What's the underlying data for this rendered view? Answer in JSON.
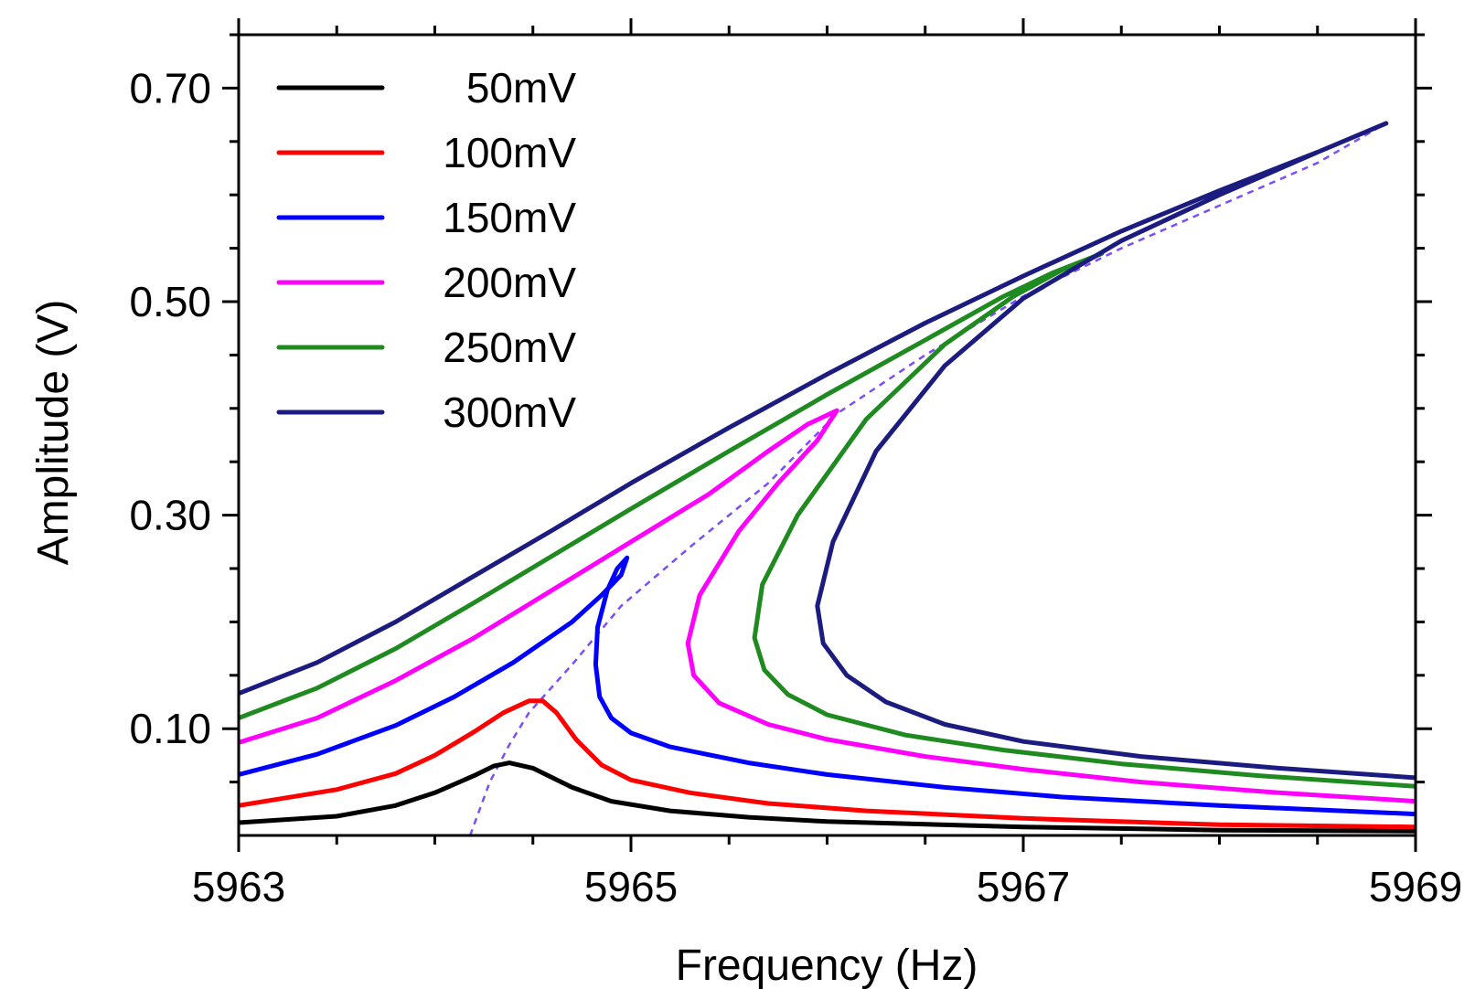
{
  "chart_data": {
    "type": "line",
    "title": "",
    "xlabel": "Frequency (Hz)",
    "ylabel": "Amplitude (V)",
    "xlim": [
      5963,
      5969
    ],
    "ylim": [
      0.0,
      0.75
    ],
    "x_ticks": [
      5963,
      5965,
      5967,
      5969
    ],
    "x_tick_labels": [
      "5963",
      "5965",
      "5967",
      "5969"
    ],
    "y_ticks": [
      0.1,
      0.3,
      0.5,
      0.7
    ],
    "y_tick_labels": [
      "0.10",
      "0.30",
      "0.50",
      "0.70"
    ],
    "grid": false,
    "legend_position": "top-left",
    "series": [
      {
        "name": "50mV",
        "color": "#000000",
        "points": [
          [
            5963.0,
            0.012
          ],
          [
            5963.5,
            0.018
          ],
          [
            5963.8,
            0.028
          ],
          [
            5964.0,
            0.04
          ],
          [
            5964.2,
            0.056
          ],
          [
            5964.3,
            0.065
          ],
          [
            5964.38,
            0.068
          ],
          [
            5964.5,
            0.063
          ],
          [
            5964.7,
            0.045
          ],
          [
            5964.9,
            0.032
          ],
          [
            5965.2,
            0.023
          ],
          [
            5965.6,
            0.017
          ],
          [
            5966.0,
            0.013
          ],
          [
            5967.0,
            0.008
          ],
          [
            5968.0,
            0.005
          ],
          [
            5969.0,
            0.004
          ]
        ]
      },
      {
        "name": "100mV",
        "color": "#ff0000",
        "points": [
          [
            5963.0,
            0.028
          ],
          [
            5963.5,
            0.043
          ],
          [
            5963.8,
            0.058
          ],
          [
            5964.0,
            0.075
          ],
          [
            5964.2,
            0.097
          ],
          [
            5964.35,
            0.115
          ],
          [
            5964.48,
            0.126
          ],
          [
            5964.55,
            0.126
          ],
          [
            5964.62,
            0.115
          ],
          [
            5964.72,
            0.09
          ],
          [
            5964.85,
            0.066
          ],
          [
            5965.0,
            0.052
          ],
          [
            5965.3,
            0.04
          ],
          [
            5965.7,
            0.03
          ],
          [
            5966.2,
            0.023
          ],
          [
            5967.0,
            0.016
          ],
          [
            5968.0,
            0.01
          ],
          [
            5969.0,
            0.008
          ]
        ]
      },
      {
        "name": "150mV",
        "color": "#0000ff",
        "points": [
          [
            5963.0,
            0.057
          ],
          [
            5963.4,
            0.076
          ],
          [
            5963.8,
            0.103
          ],
          [
            5964.1,
            0.13
          ],
          [
            5964.4,
            0.162
          ],
          [
            5964.7,
            0.2
          ],
          [
            5964.85,
            0.225
          ],
          [
            5964.95,
            0.244
          ],
          [
            5964.98,
            0.26
          ],
          [
            5964.93,
            0.25
          ],
          [
            5964.88,
            0.23
          ],
          [
            5964.83,
            0.195
          ],
          [
            5964.82,
            0.16
          ],
          [
            5964.84,
            0.13
          ],
          [
            5964.9,
            0.11
          ],
          [
            5965.0,
            0.096
          ],
          [
            5965.2,
            0.083
          ],
          [
            5965.6,
            0.068
          ],
          [
            5966.0,
            0.057
          ],
          [
            5966.6,
            0.045
          ],
          [
            5967.2,
            0.036
          ],
          [
            5968.0,
            0.028
          ],
          [
            5969.0,
            0.02
          ]
        ]
      },
      {
        "name": "200mV",
        "color": "#ff00ff",
        "points": [
          [
            5963.0,
            0.087
          ],
          [
            5963.4,
            0.11
          ],
          [
            5963.8,
            0.145
          ],
          [
            5964.2,
            0.185
          ],
          [
            5964.6,
            0.23
          ],
          [
            5965.0,
            0.275
          ],
          [
            5965.4,
            0.32
          ],
          [
            5965.7,
            0.36
          ],
          [
            5965.9,
            0.385
          ],
          [
            5966.05,
            0.398
          ],
          [
            5965.95,
            0.37
          ],
          [
            5965.75,
            0.33
          ],
          [
            5965.55,
            0.285
          ],
          [
            5965.35,
            0.225
          ],
          [
            5965.29,
            0.18
          ],
          [
            5965.32,
            0.15
          ],
          [
            5965.45,
            0.124
          ],
          [
            5965.7,
            0.104
          ],
          [
            5966.0,
            0.09
          ],
          [
            5966.5,
            0.074
          ],
          [
            5967.0,
            0.062
          ],
          [
            5967.6,
            0.05
          ],
          [
            5968.3,
            0.04
          ],
          [
            5969.0,
            0.032
          ]
        ]
      },
      {
        "name": "250mV",
        "color": "#1f8a1f",
        "points": [
          [
            5963.0,
            0.11
          ],
          [
            5963.4,
            0.138
          ],
          [
            5963.8,
            0.175
          ],
          [
            5964.2,
            0.218
          ],
          [
            5964.6,
            0.262
          ],
          [
            5965.0,
            0.306
          ],
          [
            5965.5,
            0.36
          ],
          [
            5966.0,
            0.413
          ],
          [
            5966.5,
            0.464
          ],
          [
            5966.9,
            0.505
          ],
          [
            5967.15,
            0.527
          ],
          [
            5967.4,
            0.545
          ],
          [
            5967.2,
            0.53
          ],
          [
            5966.95,
            0.505
          ],
          [
            5966.6,
            0.46
          ],
          [
            5966.2,
            0.39
          ],
          [
            5965.85,
            0.3
          ],
          [
            5965.67,
            0.235
          ],
          [
            5965.63,
            0.185
          ],
          [
            5965.68,
            0.155
          ],
          [
            5965.8,
            0.132
          ],
          [
            5966.0,
            0.113
          ],
          [
            5966.4,
            0.094
          ],
          [
            5966.9,
            0.08
          ],
          [
            5967.5,
            0.067
          ],
          [
            5968.2,
            0.056
          ],
          [
            5969.0,
            0.046
          ]
        ]
      },
      {
        "name": "300mV",
        "color": "#1c1c80",
        "points": [
          [
            5963.0,
            0.133
          ],
          [
            5963.4,
            0.162
          ],
          [
            5963.8,
            0.2
          ],
          [
            5964.2,
            0.243
          ],
          [
            5964.6,
            0.286
          ],
          [
            5965.0,
            0.33
          ],
          [
            5965.5,
            0.382
          ],
          [
            5966.0,
            0.432
          ],
          [
            5966.5,
            0.48
          ],
          [
            5967.0,
            0.524
          ],
          [
            5967.5,
            0.566
          ],
          [
            5968.0,
            0.604
          ],
          [
            5968.5,
            0.64
          ],
          [
            5968.85,
            0.667
          ],
          [
            5968.5,
            0.64
          ],
          [
            5968.0,
            0.6
          ],
          [
            5967.5,
            0.557
          ],
          [
            5967.0,
            0.503
          ],
          [
            5966.6,
            0.44
          ],
          [
            5966.25,
            0.36
          ],
          [
            5966.03,
            0.275
          ],
          [
            5965.95,
            0.215
          ],
          [
            5965.98,
            0.18
          ],
          [
            5966.1,
            0.15
          ],
          [
            5966.3,
            0.125
          ],
          [
            5966.6,
            0.104
          ],
          [
            5967.0,
            0.088
          ],
          [
            5967.6,
            0.074
          ],
          [
            5968.3,
            0.063
          ],
          [
            5969.0,
            0.054
          ]
        ]
      }
    ],
    "backbone": {
      "color": "#7a4dff",
      "style": "dashed",
      "points": [
        [
          5964.18,
          0.0
        ],
        [
          5964.28,
          0.05
        ],
        [
          5964.38,
          0.085
        ],
        [
          5964.48,
          0.115
        ],
        [
          5964.7,
          0.16
        ],
        [
          5964.95,
          0.215
        ],
        [
          5965.3,
          0.27
        ],
        [
          5965.7,
          0.33
        ],
        [
          5966.05,
          0.395
        ],
        [
          5966.5,
          0.45
        ],
        [
          5967.0,
          0.505
        ],
        [
          5967.5,
          0.55
        ],
        [
          5968.0,
          0.59
        ],
        [
          5968.5,
          0.63
        ],
        [
          5968.85,
          0.667
        ]
      ]
    }
  }
}
